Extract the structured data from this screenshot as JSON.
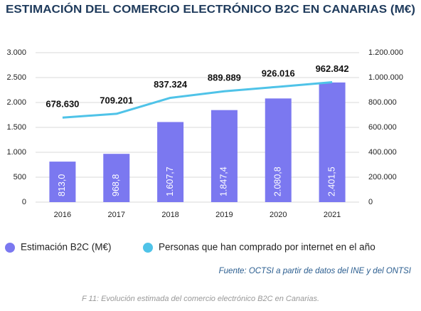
{
  "chart_data": {
    "type": "bar_line",
    "title": "ESTIMACIÓN DEL COMERCIO ELECTRÓNICO B2C EN CANARIAS (M€)",
    "categories": [
      "2016",
      "2017",
      "2018",
      "2019",
      "2020",
      "2021"
    ],
    "series": [
      {
        "name": "Estimación B2C (M€)",
        "type": "bar",
        "color": "#7b78f0",
        "values": [
          813.0,
          968.8,
          1607.7,
          1847.4,
          2080.8,
          2401.5
        ],
        "value_labels": [
          "813,0",
          "968,8",
          "1.607,7",
          "1.847,4",
          "2.080,8",
          "2.401,5"
        ]
      },
      {
        "name": "Personas que han comprado por internet en el año",
        "type": "line",
        "axis": "y2",
        "color": "#4fc3e8",
        "values": [
          678630,
          709201,
          837324,
          889889,
          926016,
          962842
        ],
        "value_labels": [
          "678.630",
          "709.201",
          "837.324",
          "889.889",
          "926.016",
          "962.842"
        ]
      }
    ],
    "ylim": [
      0,
      3000
    ],
    "yticks": [
      0,
      500,
      {
        "value": 1000,
        "label": "1.000"
      },
      {
        "value": 1500,
        "label": "1.500"
      },
      {
        "value": 2000,
        "label": "2.000"
      },
      {
        "value": 2500,
        "label": "2.500"
      },
      {
        "value": 3000,
        "label": "3.000"
      }
    ],
    "y2lim": [
      0,
      1200000
    ],
    "y2ticks": [
      0,
      {
        "value": 200000,
        "label": "200.000"
      },
      {
        "value": 400000,
        "label": "400.000"
      },
      {
        "value": 600000,
        "label": "600.000"
      },
      {
        "value": 800000,
        "label": "800.000"
      },
      {
        "value": 1000000,
        "label": "1.000.000"
      },
      {
        "value": 1200000,
        "label": "1.200.000"
      }
    ],
    "grid": true,
    "legend": "bottom",
    "source": "Fuente: OCTSI a partir de datos del INE y del ONTSI",
    "caption": "F 11: Evolución estimada del comercio electrónico B2C en Canarias."
  }
}
